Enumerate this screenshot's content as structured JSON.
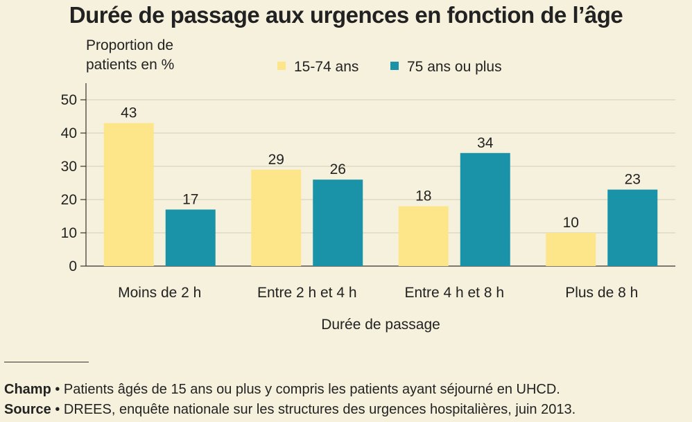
{
  "title": "Durée de passage aux urgences en fonction de l’âge",
  "footer": {
    "champ_label": "Champ",
    "champ_text": " • Patients âgés de 15 ans ou plus y compris les patients ayant séjourné en UHCD.",
    "source_label": "Source",
    "source_text": " • DREES, enquête nationale sur les structures des urgences hospitalières, juin 2013."
  },
  "chart_data": {
    "type": "bar",
    "title": "Durée de passage aux urgences en fonction de l’âge",
    "ylabel": "Proportion de patients en %",
    "xlabel": "Durée de passage",
    "categories": [
      "Moins de 2 h",
      "Entre 2 h et 4 h",
      "Entre 4 h et 8 h",
      "Plus de 8 h"
    ],
    "series": [
      {
        "name": "15-74 ans",
        "color": "#fde68a",
        "values": [
          43,
          29,
          18,
          10
        ]
      },
      {
        "name": "75 ans ou plus",
        "color": "#1a93a8",
        "values": [
          17,
          26,
          34,
          23
        ]
      }
    ],
    "yticks": [
      0,
      10,
      20,
      30,
      40,
      50
    ],
    "ylim": [
      0,
      50
    ],
    "grid": true,
    "legend": "top",
    "data_labels": true
  }
}
